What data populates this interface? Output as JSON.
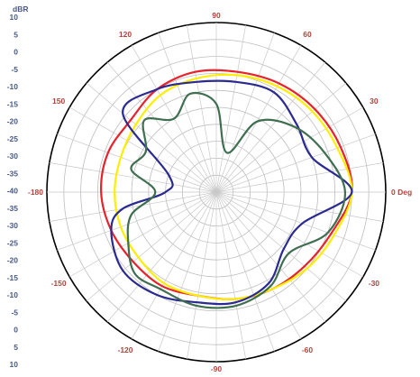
{
  "chart_data": {
    "type": "polar",
    "radial_unit": "dBR",
    "angle_unit": "Deg",
    "radial_range": [
      -40,
      10
    ],
    "radial_tick_labels": [
      "10",
      "5",
      "0",
      "-5",
      "-10",
      "-15",
      "-20",
      "-25",
      "-30",
      "-35",
      "-40",
      "-35",
      "-30",
      "-25",
      "-20",
      "-15",
      "-10",
      "-5",
      "0",
      "5",
      "10"
    ],
    "angle_tick_labels": [
      {
        "angle": 0,
        "text": "0 Deg"
      },
      {
        "angle": 30,
        "text": "30"
      },
      {
        "angle": 60,
        "text": "60"
      },
      {
        "angle": 90,
        "text": "90"
      },
      {
        "angle": 120,
        "text": "120"
      },
      {
        "angle": 150,
        "text": "150"
      },
      {
        "angle": 180,
        "text": "-180"
      },
      {
        "angle": 210,
        "text": "-150"
      },
      {
        "angle": 240,
        "text": "-120"
      },
      {
        "angle": 270,
        "text": "-90"
      },
      {
        "angle": 300,
        "text": "-60"
      },
      {
        "angle": 330,
        "text": "-30"
      }
    ],
    "grid": true,
    "series": [
      {
        "color": "#e8212a",
        "angles": [
          0,
          20,
          40,
          60,
          80,
          100,
          120,
          140,
          160,
          180,
          200,
          220,
          240,
          260,
          280,
          300,
          320,
          340,
          360
        ],
        "values": [
          0,
          -1,
          -2,
          -3,
          -4,
          -4,
          -5,
          -7,
          -6,
          -6,
          -7,
          -8,
          -8,
          -9,
          -8,
          -7,
          -6,
          -4,
          0
        ]
      },
      {
        "color": "#ffee00",
        "angles": [
          0,
          20,
          40,
          60,
          80,
          100,
          120,
          140,
          160,
          180,
          200,
          220,
          240,
          260,
          280,
          300,
          320,
          340,
          360
        ],
        "values": [
          0,
          -2,
          -3,
          -4,
          -5,
          -6,
          -7,
          -9,
          -10,
          -10,
          -10,
          -10,
          -9,
          -9,
          -8,
          -7,
          -5,
          -3,
          0
        ]
      },
      {
        "color": "#2a2a90",
        "angles": [
          0,
          20,
          40,
          60,
          80,
          100,
          120,
          140,
          160,
          180,
          190,
          200,
          220,
          240,
          260,
          280,
          300,
          320,
          340,
          360
        ],
        "values": [
          0,
          -10,
          -9,
          -6,
          -7,
          -7,
          -5,
          -4,
          -25,
          -25,
          -12,
          -7,
          -4,
          -5,
          -7,
          -7,
          -9,
          -14,
          -13,
          0
        ]
      },
      {
        "color": "#3f6e50",
        "angles": [
          0,
          20,
          40,
          60,
          75,
          90,
          105,
          120,
          135,
          150,
          165,
          180,
          195,
          210,
          225,
          240,
          260,
          280,
          300,
          320,
          340,
          360
        ],
        "values": [
          -2,
          -6,
          -10,
          -16,
          -28,
          -14,
          -10,
          -15,
          -10,
          -16,
          -14,
          -22,
          -14,
          -10,
          -6,
          -7,
          -6,
          -6,
          -8,
          -12,
          -5,
          -2
        ]
      }
    ]
  }
}
